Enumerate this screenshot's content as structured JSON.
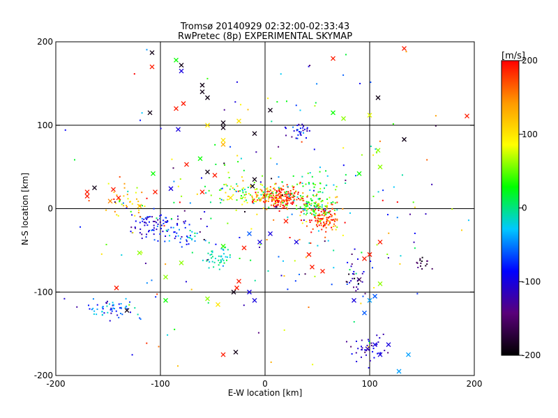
{
  "chart_data": {
    "type": "scatter",
    "title": "Tromsø 20140929 02:32:00-02:33:43",
    "subtitle": "RwPretec (8p) EXPERIMENTAL SKYMAP",
    "xlabel": "E-W location [km]",
    "ylabel": "N-S location [km]",
    "xlim": [
      -200,
      200
    ],
    "ylim": [
      -200,
      200
    ],
    "xticks": [
      -200,
      -100,
      0,
      100,
      200
    ],
    "yticks": [
      -200,
      -100,
      0,
      100,
      200
    ],
    "grid": true,
    "colorbar": {
      "label": "[m/s]",
      "range": [
        -200,
        200
      ],
      "ticks": [
        -200,
        -100,
        0,
        100,
        200
      ],
      "colors": [
        "#000000",
        "#5a007a",
        "#0000ff",
        "#00c8ff",
        "#00ff00",
        "#ffff00",
        "#ff9900",
        "#ff0000"
      ]
    },
    "clusters": [
      {
        "cx": 15,
        "cy": 13,
        "sx": 10,
        "sy": 6,
        "n": 160,
        "v": 190,
        "vs": 20
      },
      {
        "cx": -2,
        "cy": 17,
        "sx": 14,
        "sy": 8,
        "n": 90,
        "v": 110,
        "vs": 40
      },
      {
        "cx": 55,
        "cy": -10,
        "sx": 9,
        "sy": 10,
        "n": 130,
        "v": 170,
        "vs": 50
      },
      {
        "cx": 48,
        "cy": 2,
        "sx": 9,
        "sy": 7,
        "n": 70,
        "v": 30,
        "vs": 30
      },
      {
        "cx": 30,
        "cy": 25,
        "sx": 20,
        "sy": 10,
        "n": 60,
        "v": 20,
        "vs": 30
      },
      {
        "cx": -25,
        "cy": 20,
        "sx": 12,
        "sy": 10,
        "n": 40,
        "v": 40,
        "vs": 40
      },
      {
        "cx": -105,
        "cy": -18,
        "sx": 12,
        "sy": 7,
        "n": 70,
        "v": -100,
        "vs": 25
      },
      {
        "cx": -80,
        "cy": -35,
        "sx": 12,
        "sy": 8,
        "n": 45,
        "v": -60,
        "vs": 30
      },
      {
        "cx": -45,
        "cy": -58,
        "sx": 7,
        "sy": 6,
        "n": 40,
        "v": -10,
        "vs": 20
      },
      {
        "cx": -150,
        "cy": -120,
        "sx": 15,
        "sy": 6,
        "n": 60,
        "v": -60,
        "vs": 35
      },
      {
        "cx": 32,
        "cy": 93,
        "sx": 5,
        "sy": 4,
        "n": 30,
        "v": -100,
        "vs": 20
      },
      {
        "cx": 98,
        "cy": -168,
        "sx": 10,
        "sy": 8,
        "n": 40,
        "v": -110,
        "vs": 20
      },
      {
        "cx": 85,
        "cy": -80,
        "sx": 8,
        "sy": 15,
        "n": 30,
        "v": -120,
        "vs": 40
      },
      {
        "cx": 150,
        "cy": -65,
        "sx": 4,
        "sy": 4,
        "n": 15,
        "v": -170,
        "vs": 20
      },
      {
        "cx": -130,
        "cy": 5,
        "sx": 12,
        "sy": 10,
        "n": 40,
        "v": 100,
        "vs": 60
      },
      {
        "cx": 0,
        "cy": 0,
        "sx": 110,
        "sy": 90,
        "n": 240,
        "v": 0,
        "vs": 110
      }
    ],
    "crosses": [
      [
        -108,
        187,
        -190
      ],
      [
        -108,
        170,
        190
      ],
      [
        -80,
        172,
        -190
      ],
      [
        -80,
        165,
        -100
      ],
      [
        -85,
        178,
        30
      ],
      [
        -60,
        148,
        -190
      ],
      [
        -60,
        140,
        -190
      ],
      [
        -85,
        120,
        190
      ],
      [
        -78,
        126,
        190
      ],
      [
        -55,
        133,
        -190
      ],
      [
        -40,
        103,
        -190
      ],
      [
        -40,
        97,
        -190
      ],
      [
        -25,
        105,
        100
      ],
      [
        -40,
        82,
        100
      ],
      [
        -40,
        77,
        130
      ],
      [
        -55,
        100,
        100
      ],
      [
        -10,
        90,
        -190
      ],
      [
        5,
        118,
        -190
      ],
      [
        65,
        115,
        30
      ],
      [
        75,
        108,
        60
      ],
      [
        100,
        112,
        80
      ],
      [
        108,
        133,
        -190
      ],
      [
        65,
        180,
        190
      ],
      [
        133,
        192,
        190
      ],
      [
        133,
        83,
        -190
      ],
      [
        193,
        111,
        190
      ],
      [
        -170,
        20,
        190
      ],
      [
        -170,
        15,
        190
      ],
      [
        -163,
        25,
        -190
      ],
      [
        -145,
        23,
        190
      ],
      [
        -148,
        9,
        150
      ],
      [
        -140,
        13,
        190
      ],
      [
        -120,
        3,
        120
      ],
      [
        -107,
        42,
        30
      ],
      [
        -105,
        20,
        190
      ],
      [
        -90,
        24,
        -100
      ],
      [
        -75,
        53,
        190
      ],
      [
        -62,
        60,
        30
      ],
      [
        -55,
        44,
        -190
      ],
      [
        -48,
        40,
        190
      ],
      [
        -60,
        20,
        190
      ],
      [
        -33,
        13,
        100
      ],
      [
        -10,
        35,
        -190
      ],
      [
        -12,
        27,
        -190
      ],
      [
        -40,
        -45,
        40
      ],
      [
        -80,
        -65,
        60
      ],
      [
        -95,
        -82,
        60
      ],
      [
        -120,
        -53,
        60
      ],
      [
        -142,
        -95,
        190
      ],
      [
        -132,
        -122,
        -190
      ],
      [
        -95,
        -110,
        30
      ],
      [
        -55,
        -108,
        60
      ],
      [
        -45,
        -115,
        100
      ],
      [
        -30,
        -100,
        -190
      ],
      [
        -27,
        -95,
        190
      ],
      [
        -25,
        -87,
        190
      ],
      [
        -15,
        -100,
        -100
      ],
      [
        -10,
        -110,
        -100
      ],
      [
        -28,
        -172,
        -190
      ],
      [
        -40,
        -175,
        190
      ],
      [
        5,
        -30,
        -100
      ],
      [
        -5,
        -40,
        -100
      ],
      [
        -15,
        -30,
        -60
      ],
      [
        -20,
        -47,
        190
      ],
      [
        20,
        -15,
        190
      ],
      [
        30,
        -40,
        -100
      ],
      [
        42,
        -55,
        190
      ],
      [
        55,
        -75,
        190
      ],
      [
        45,
        -70,
        190
      ],
      [
        90,
        -85,
        -160
      ],
      [
        85,
        -110,
        -100
      ],
      [
        95,
        -125,
        -60
      ],
      [
        100,
        -110,
        -40
      ],
      [
        105,
        -105,
        -60
      ],
      [
        110,
        -90,
        60
      ],
      [
        95,
        -60,
        190
      ],
      [
        100,
        -55,
        190
      ],
      [
        110,
        -40,
        190
      ],
      [
        98,
        -168,
        -120
      ],
      [
        105,
        -163,
        -100
      ],
      [
        110,
        -175,
        -100
      ],
      [
        118,
        -163,
        -100
      ],
      [
        137,
        -175,
        -40
      ],
      [
        128,
        -195,
        -40
      ],
      [
        108,
        70,
        60
      ],
      [
        110,
        50,
        60
      ],
      [
        90,
        42,
        30
      ],
      [
        -110,
        115,
        -190
      ],
      [
        -83,
        95,
        -100
      ]
    ]
  }
}
